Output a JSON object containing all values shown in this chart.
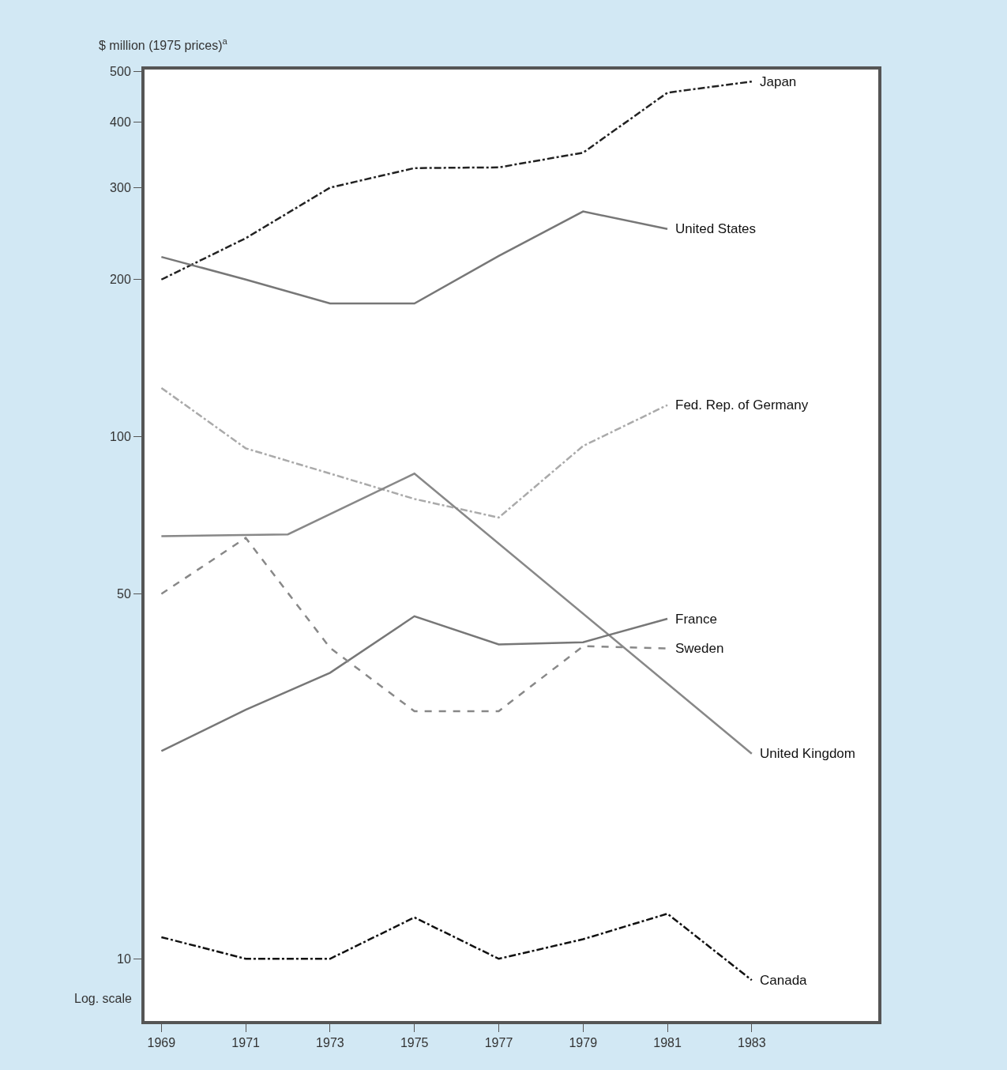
{
  "chart_data": {
    "type": "line",
    "ylabel": "$ million (1975 prices)$^{a}$",
    "log": true,
    "legend": false,
    "marker": "none",
    "annotations": [
      "Log. scale"
    ],
    "x": [
      1969,
      1971,
      1973,
      1975,
      1977,
      1979,
      1981,
      1983
    ],
    "xlim": [
      1968.6,
      1986
    ],
    "xticks": [
      1969,
      1971,
      1973,
      1975,
      1977,
      1979,
      1981,
      1983
    ],
    "ylim": [
      7.6,
      505
    ],
    "yticks": [
      10,
      50,
      100,
      200,
      300,
      400,
      500
    ],
    "series": [
      {
        "name": "Japan",
        "color": "#222222",
        "line_style": "dashdot",
        "values": [
          200,
          240,
          300,
          327,
          328,
          350,
          456,
          479
        ]
      },
      {
        "name": "United States",
        "color": "#777777",
        "line_style": "solid",
        "x": [
          1969,
          1971,
          1973,
          1975,
          1977,
          1979,
          1981
        ],
        "values": [
          221,
          200,
          180,
          180,
          222,
          270,
          250
        ]
      },
      {
        "name": "Fed. Rep. of Germany",
        "color": "#aaaaaa",
        "line_style": "dashdot",
        "x": [
          1969,
          1971,
          1973,
          1975,
          1977,
          1979,
          1981
        ],
        "values": [
          124,
          95,
          85,
          76,
          70,
          96,
          115
        ]
      },
      {
        "name": "United Kingdom",
        "color": "#888888",
        "line_style": "solid",
        "x": [
          1969,
          1972,
          1975,
          1983
        ],
        "values": [
          64.5,
          65,
          85,
          24.7
        ]
      },
      {
        "name": "France",
        "color": "#777777",
        "line_style": "solid",
        "x": [
          1969,
          1971,
          1973,
          1975,
          1977,
          1979,
          1981
        ],
        "values": [
          25,
          30,
          35.3,
          45.3,
          40,
          40.4,
          44.8
        ]
      },
      {
        "name": "Sweden",
        "color": "#888888",
        "line_style": "dashed",
        "x": [
          1969,
          1971,
          1973,
          1975,
          1977,
          1979,
          1981
        ],
        "values": [
          50,
          64,
          39.4,
          29.8,
          29.8,
          39.7,
          39.3
        ]
      },
      {
        "name": "Canada",
        "color": "#111111",
        "line_style": "dashdot",
        "values": [
          11,
          10,
          10,
          12,
          10,
          10.9,
          12.2,
          9.1
        ]
      }
    ]
  }
}
